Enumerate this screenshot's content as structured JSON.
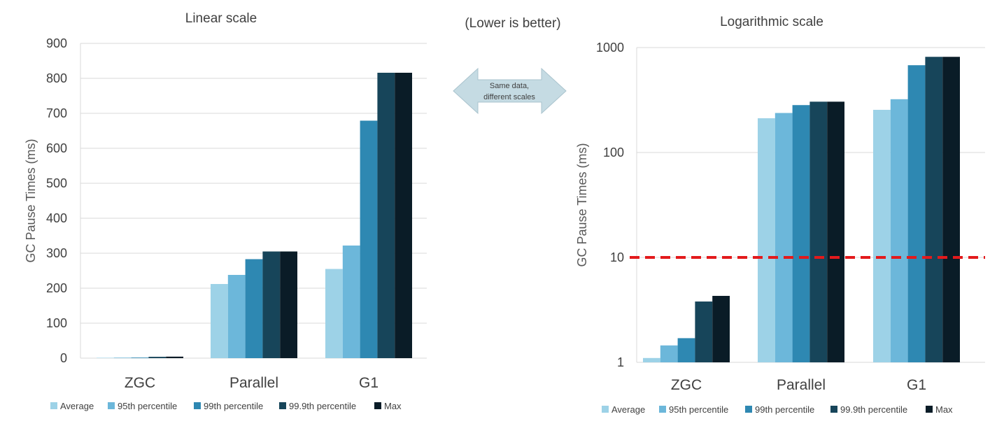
{
  "header": {
    "center_note": "(Lower is better)"
  },
  "arrow": {
    "line1": "Same data,",
    "line2": "different scales"
  },
  "colors": [
    "#9dd2e7",
    "#6cb7da",
    "#2e88b2",
    "#17455a",
    "#0a1c27"
  ],
  "chart_data": [
    {
      "type": "bar",
      "title": "Linear scale",
      "ylabel": "GC Pause Times (ms)",
      "scale": "linear",
      "ylim": [
        0,
        900
      ],
      "yticks": [
        0,
        100,
        200,
        300,
        400,
        500,
        600,
        700,
        800,
        900
      ],
      "ytick_labels": [
        "0",
        "100",
        "200",
        "300",
        "400",
        "500",
        "600",
        "700",
        "800",
        "900"
      ],
      "grid": true,
      "legend": "bottom",
      "categories": [
        "ZGC",
        "Parallel",
        "G1"
      ],
      "series": [
        {
          "name": "Average",
          "values": [
            1.1,
            212,
            255
          ]
        },
        {
          "name": "95th percentile",
          "values": [
            1.45,
            238,
            322
          ]
        },
        {
          "name": "99th percentile",
          "values": [
            1.7,
            283,
            679
          ]
        },
        {
          "name": "99.9th percentile",
          "values": [
            3.8,
            305,
            816
          ]
        },
        {
          "name": "Max",
          "values": [
            4.3,
            305,
            816
          ]
        }
      ]
    },
    {
      "type": "bar",
      "title": "Logarithmic scale",
      "ylabel": "GC Pause Times (ms)",
      "scale": "log",
      "ylim": [
        1,
        1000
      ],
      "yticks": [
        1,
        10,
        100,
        1000
      ],
      "ytick_labels": [
        "1",
        "10",
        "100",
        "1000"
      ],
      "grid": true,
      "legend": "bottom",
      "reference_line": {
        "y": 10,
        "color": "#e31a1c",
        "style": "dashed"
      },
      "categories": [
        "ZGC",
        "Parallel",
        "G1"
      ],
      "series": [
        {
          "name": "Average",
          "values": [
            1.1,
            212,
            255
          ]
        },
        {
          "name": "95th percentile",
          "values": [
            1.45,
            238,
            322
          ]
        },
        {
          "name": "99th percentile",
          "values": [
            1.7,
            283,
            679
          ]
        },
        {
          "name": "99.9th percentile",
          "values": [
            3.8,
            305,
            816
          ]
        },
        {
          "name": "Max",
          "values": [
            4.3,
            305,
            816
          ]
        }
      ]
    }
  ]
}
